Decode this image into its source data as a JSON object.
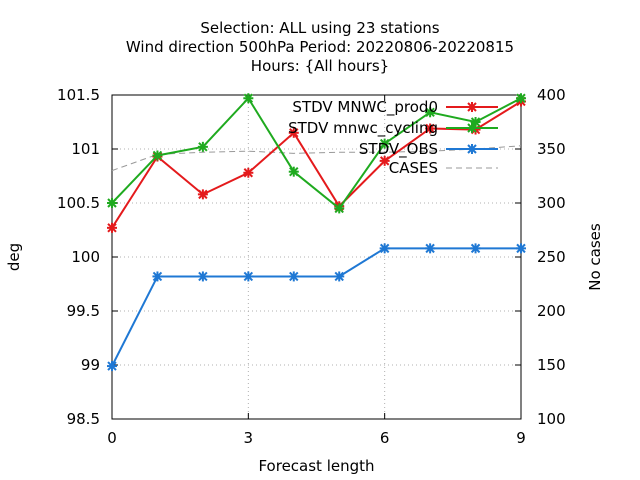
{
  "chart_data": {
    "type": "line",
    "title_lines": [
      "Selection: ALL using    23 stations",
      "Wind direction 500hPa   Period: 20220806-20220815",
      "Hours: {All hours}"
    ],
    "xlabel": "Forecast length",
    "ylabel": "deg",
    "y2label": "No cases",
    "xlim": [
      0,
      9
    ],
    "ylim": [
      98.5,
      101.5
    ],
    "y2lim": [
      100,
      400
    ],
    "x_ticks": [
      "0",
      "3",
      "6",
      "9"
    ],
    "y_ticks": [
      "98.5",
      "99",
      "99.5",
      "100",
      "100.5",
      "101",
      "101.5"
    ],
    "y2_ticks": [
      "100",
      "150",
      "200",
      "250",
      "300",
      "350",
      "400"
    ],
    "grid": true,
    "legend_position": "top-right",
    "x": [
      0,
      1,
      2,
      3,
      4,
      5,
      6,
      7,
      8,
      9
    ],
    "series": [
      {
        "name": "STDV MNWC_prod0",
        "color": "#e41a1c",
        "axis": "y",
        "values": [
          100.27,
          100.93,
          100.58,
          100.78,
          101.15,
          100.47,
          100.89,
          101.19,
          101.18,
          101.44
        ]
      },
      {
        "name": "STDV mnwc_cycling",
        "color": "#1faa1f",
        "axis": "y",
        "values": [
          100.5,
          100.94,
          101.02,
          101.47,
          100.79,
          100.45,
          101.05,
          101.34,
          101.25,
          101.47
        ]
      },
      {
        "name": "STDV_OBS",
        "color": "#1f78d4",
        "axis": "y",
        "values": [
          98.99,
          99.82,
          99.82,
          99.82,
          99.82,
          99.82,
          100.08,
          100.08,
          100.08,
          100.08
        ]
      },
      {
        "name": "CASES",
        "color": "#999999",
        "axis": "y2",
        "dashed": true,
        "values": [
          330,
          345,
          347,
          348,
          346,
          347,
          347,
          348,
          350,
          353
        ]
      }
    ]
  }
}
